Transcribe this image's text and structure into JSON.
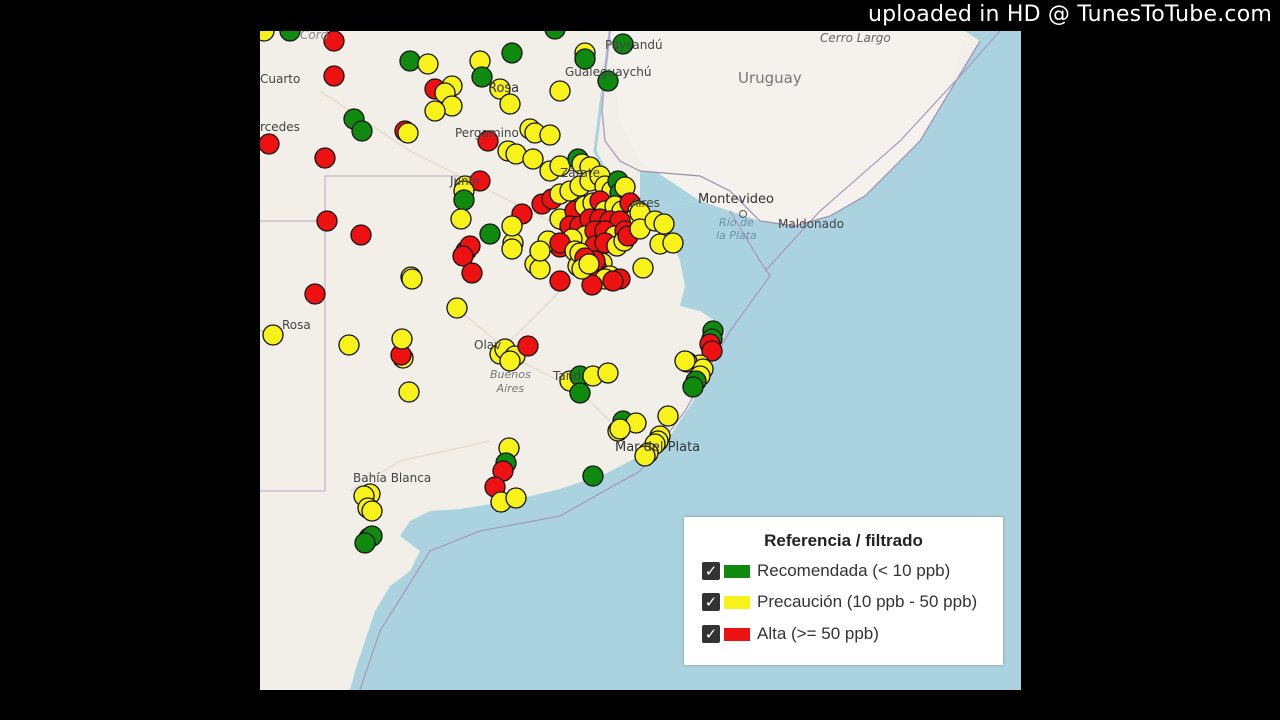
{
  "watermark": "uploaded in HD @ TunesToTube.com",
  "map": {
    "labels": {
      "uruguay": "Uruguay",
      "montevideo": "Montevideo",
      "maldonado": "Maldonado",
      "rio_de_la_plata": "Río de\nla Plata",
      "cerro_largo": "Cerro Largo",
      "paysandu": "Paysandú",
      "gualeguaychu": "Gualeguaychú",
      "rosario": "Rosa",
      "pergamino": "Pergamino",
      "junin": "Junín",
      "zarate": "Zárate",
      "buenos_aires_city": "Aires",
      "olavarria": "Olav",
      "tandil": "Tand",
      "mar_del_plata": "Mar del Plata",
      "bahia_blanca": "Bahía Blanca",
      "buenos_aires_prov": "Buenos\nAires",
      "cuarto": "Cuarto",
      "mercedes": "rcedes",
      "santa_rosa": "Rosa",
      "cordoba": "Córd"
    }
  },
  "legend": {
    "title": "Referencia / filtrado",
    "items": [
      {
        "label": "Recomendada (< 10 ppb)",
        "color": "#0f8a0f",
        "checked": true
      },
      {
        "label": "Precaución (10 ppb - 50 ppb)",
        "color": "#f7f21a",
        "checked": true
      },
      {
        "label": "Alta (>= 50 ppb)",
        "color": "#ee1111",
        "checked": true
      }
    ]
  },
  "colors": {
    "green": "#0f8a0f",
    "yellow": "#f7f21a",
    "red": "#ee1111",
    "land": "#f2efe9",
    "sea": "#aad3df"
  }
}
